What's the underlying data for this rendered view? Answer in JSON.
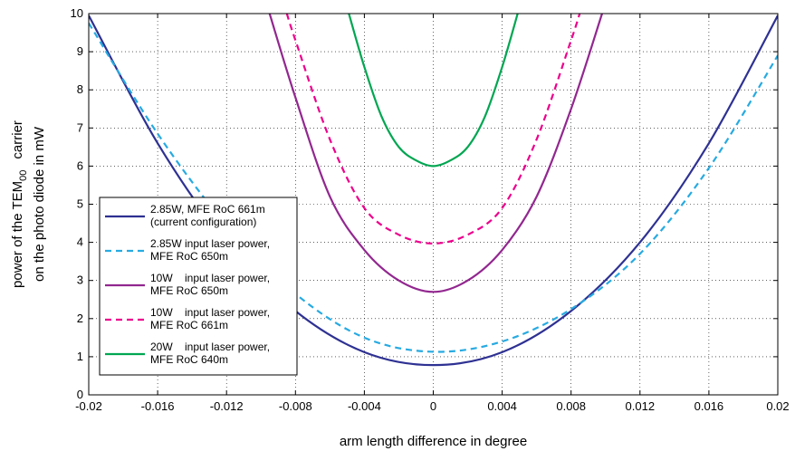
{
  "chart_data": {
    "type": "line",
    "title": "",
    "xlabel": "arm length difference in degree",
    "ylabel_line1": "power of the TEM",
    "ylabel_subscript": "00",
    "ylabel_line1_suffix": "carrier",
    "ylabel_line2": "on the photo diode in mW",
    "xlim": [
      -0.02,
      0.02
    ],
    "ylim": [
      0,
      10
    ],
    "xticks": [
      "-0.02",
      "-0.016",
      "-0.012",
      "-0.008",
      "-0.004",
      "0",
      "0.004",
      "0.008",
      "0.012",
      "0.016",
      "0.02"
    ],
    "yticks": [
      "0",
      "1",
      "2",
      "3",
      "4",
      "5",
      "6",
      "7",
      "8",
      "9",
      "10"
    ],
    "grid": true,
    "grid_style": "dotted",
    "legend_position": "bottom-left",
    "series": [
      {
        "name": "2.85W, MFE RoC 661m (current configuration)",
        "legend_lines": [
          "2.85W, MFE RoC 661m",
          "(current configuration)"
        ],
        "color": "#2e3192",
        "dash": "solid",
        "x": [
          -0.02,
          -0.016,
          -0.012,
          -0.008,
          -0.004,
          0,
          0.004,
          0.008,
          0.012,
          0.016,
          0.02
        ],
        "y": [
          9.95,
          6.6,
          4.0,
          2.2,
          1.12,
          0.78,
          1.12,
          2.2,
          4.0,
          6.6,
          9.95
        ]
      },
      {
        "name": "2.85W input laser power, MFE RoC 650m",
        "legend_lines": [
          "2.85W input laser power,",
          "MFE RoC 650m"
        ],
        "color": "#27aae1",
        "dash": "dashed",
        "x": [
          -0.02,
          -0.016,
          -0.012,
          -0.008,
          -0.004,
          0,
          0.004,
          0.008,
          0.012,
          0.016,
          0.02
        ],
        "y": [
          9.75,
          6.85,
          4.45,
          2.65,
          1.5,
          1.13,
          1.4,
          2.25,
          3.7,
          5.95,
          8.9
        ]
      },
      {
        "name": "10W input laser power, MFE RoC 650m",
        "legend_lines": [
          "10W    input laser power,",
          "MFE RoC 650m"
        ],
        "color": "#92278f",
        "dash": "solid",
        "x": [
          -0.0095,
          -0.008,
          -0.006,
          -0.004,
          -0.002,
          0,
          0.002,
          0.004,
          0.006,
          0.008,
          0.0098
        ],
        "y": [
          10.0,
          7.8,
          5.2,
          3.8,
          3.0,
          2.7,
          3.0,
          3.8,
          5.2,
          7.5,
          10.0
        ]
      },
      {
        "name": "10W input laser power, MFE RoC 661m",
        "legend_lines": [
          "10W    input laser power,",
          "MFE RoC 661m"
        ],
        "color": "#ec008c",
        "dash": "dashed",
        "x": [
          -0.0085,
          -0.008,
          -0.006,
          -0.004,
          -0.002,
          0,
          0.002,
          0.004,
          0.006,
          0.008,
          0.0085
        ],
        "y": [
          10.0,
          9.3,
          6.7,
          4.9,
          4.2,
          3.97,
          4.2,
          4.9,
          6.7,
          9.3,
          10.0
        ]
      },
      {
        "name": "20W input laser power, MFE RoC 640m",
        "legend_lines": [
          "20W    input laser power,",
          "MFE RoC 640m"
        ],
        "color": "#00a651",
        "dash": "solid",
        "x": [
          -0.0049,
          -0.004,
          -0.003,
          -0.002,
          -0.001,
          0,
          0.001,
          0.002,
          0.003,
          0.004,
          0.0049
        ],
        "y": [
          10.0,
          8.6,
          7.3,
          6.5,
          6.15,
          6.0,
          6.15,
          6.5,
          7.3,
          8.6,
          10.0
        ]
      }
    ]
  }
}
